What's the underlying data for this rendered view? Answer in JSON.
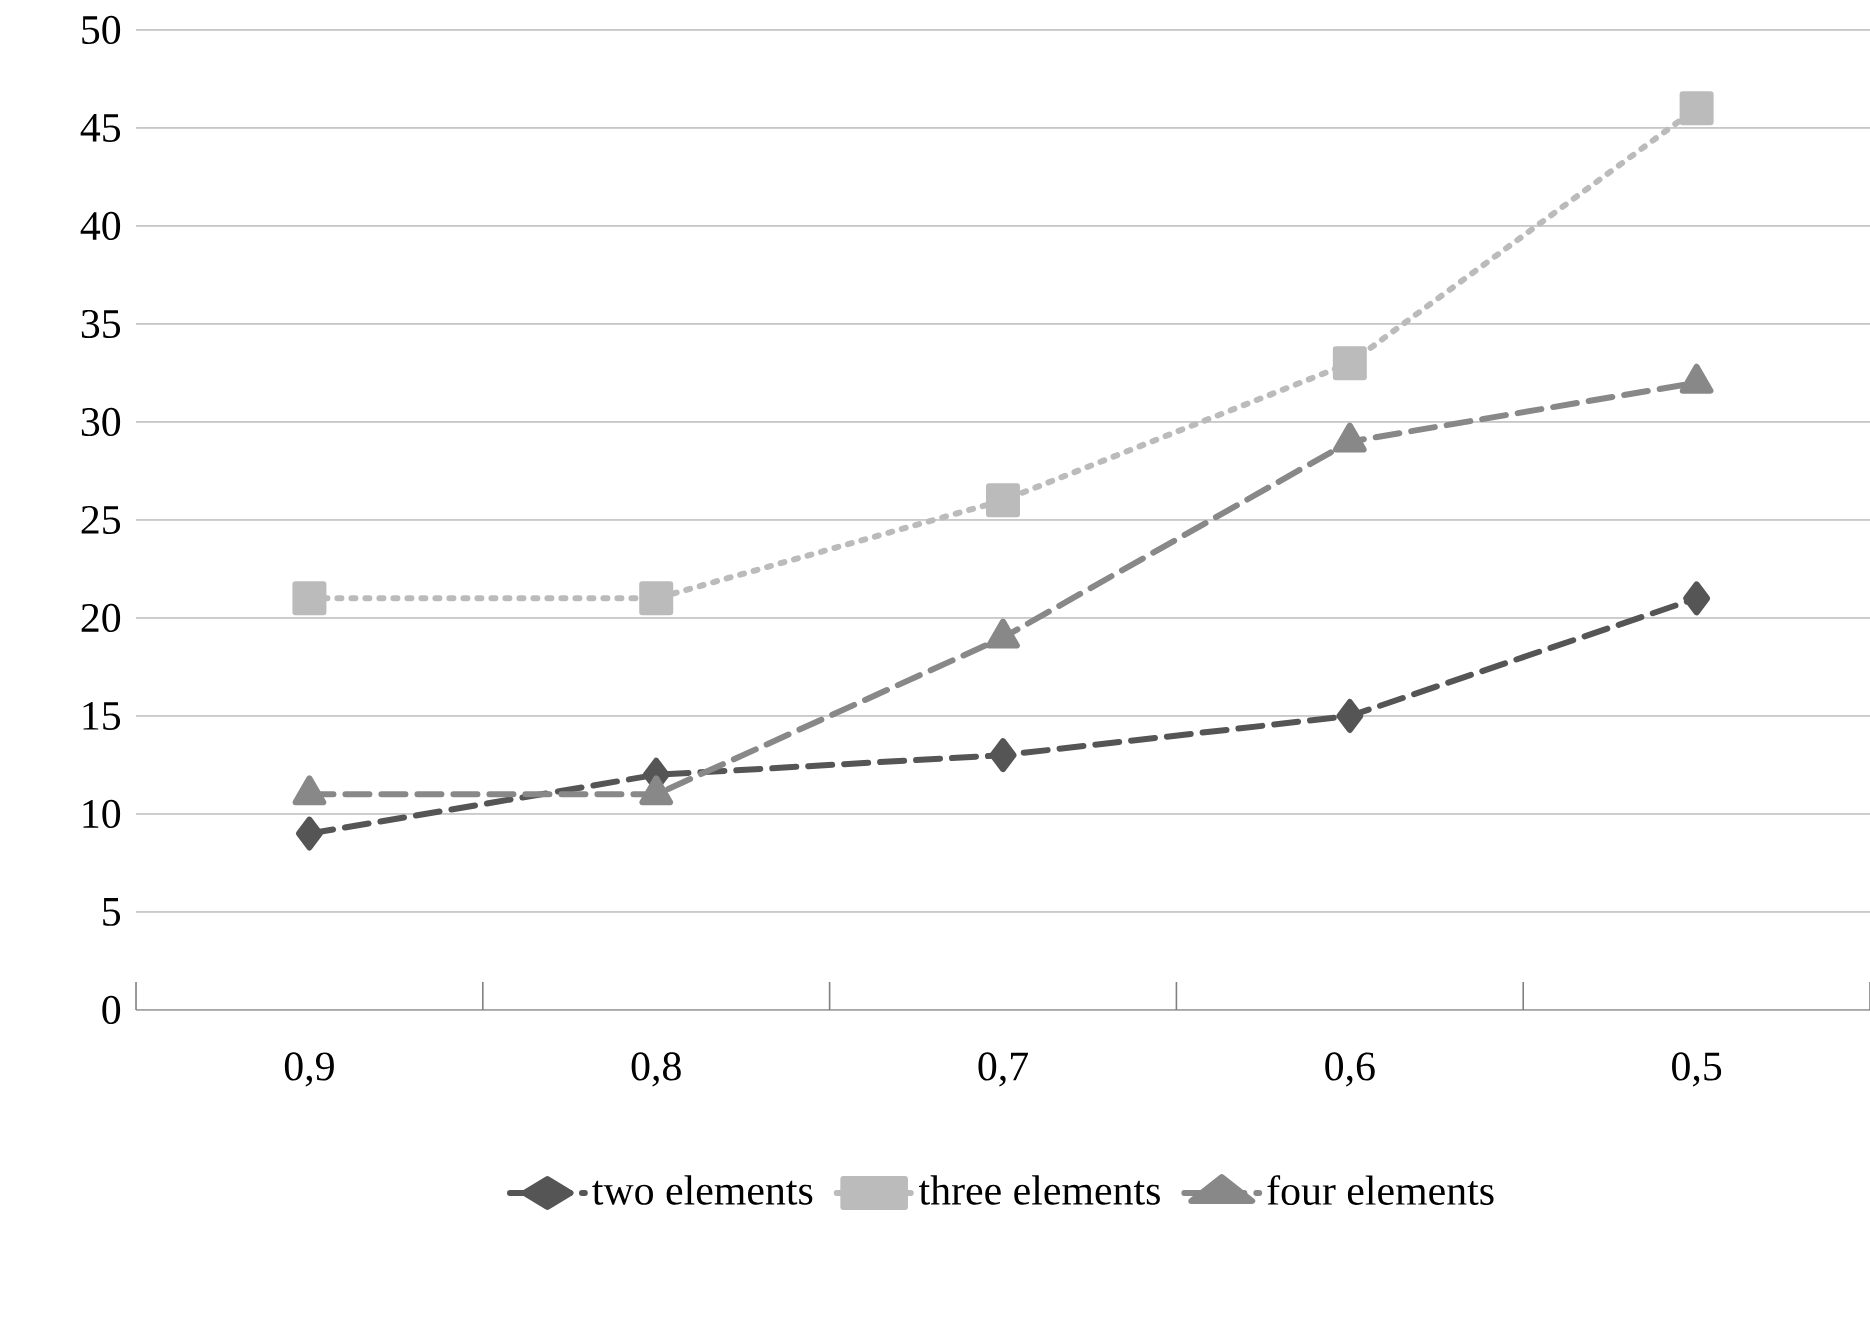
{
  "chart_data": {
    "type": "line",
    "categories": [
      "0,9",
      "0,8",
      "0,7",
      "0,6",
      "0,5"
    ],
    "series": [
      {
        "name": "two elements",
        "color": "#555555",
        "values": [
          9,
          12,
          13,
          15,
          21
        ],
        "marker": "diamond",
        "line_style": "dashed"
      },
      {
        "name": "three elements",
        "color": "#bbbbbb",
        "values": [
          21,
          21,
          26,
          33,
          46
        ],
        "marker": "square",
        "line_style": "dotted"
      },
      {
        "name": "four elements",
        "color": "#888888",
        "values": [
          11,
          11,
          19,
          29,
          32
        ],
        "marker": "triangle",
        "line_style": "dashed"
      }
    ],
    "ylim": [
      0,
      50
    ],
    "yticks": [
      0,
      5,
      10,
      15,
      20,
      25,
      30,
      35,
      40,
      45,
      50
    ],
    "grid": "y",
    "legend": "bottom"
  }
}
